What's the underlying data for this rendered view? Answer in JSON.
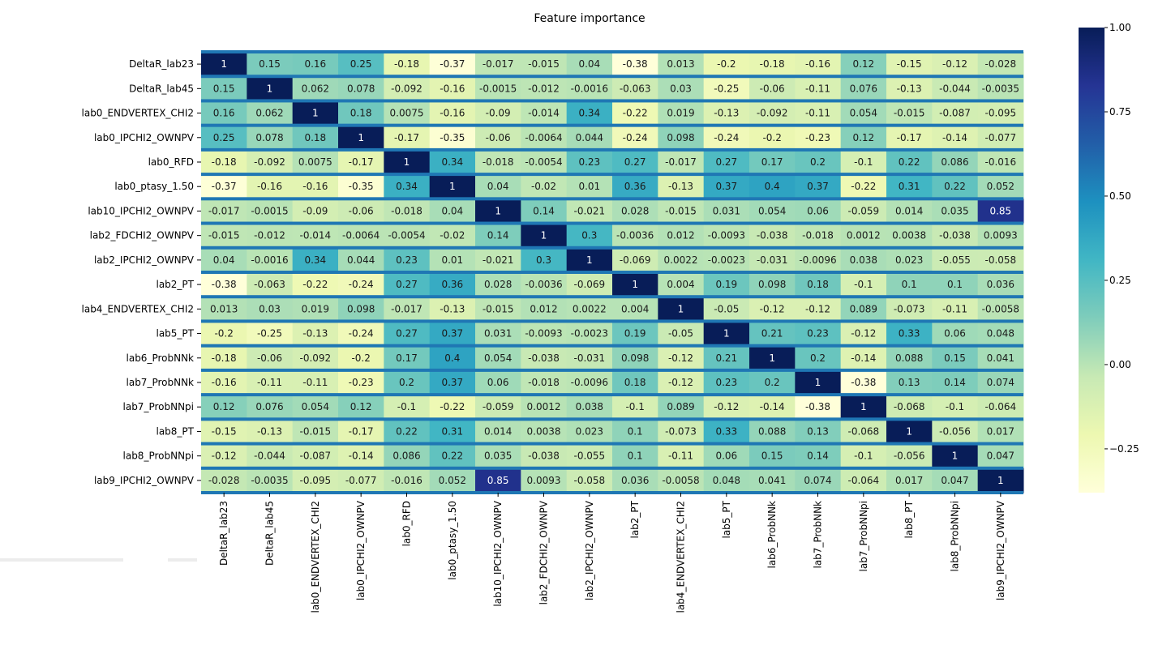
{
  "chart_data": {
    "type": "heatmap",
    "title": "Feature importance",
    "labels": [
      "DeltaR_lab23",
      "DeltaR_lab45",
      "lab0_ENDVERTEX_CHI2",
      "lab0_IPCHI2_OWNPV",
      "lab0_RFD",
      "lab0_ptasy_1.50",
      "lab10_IPCHI2_OWNPV",
      "lab2_FDCHI2_OWNPV",
      "lab2_IPCHI2_OWNPV",
      "lab2_PT",
      "lab4_ENDVERTEX_CHI2",
      "lab5_PT",
      "lab6_ProbNNk",
      "lab7_ProbNNk",
      "lab7_ProbNNpi",
      "lab8_PT",
      "lab8_ProbNNpi",
      "lab9_IPCHI2_OWNPV"
    ],
    "matrix": [
      [
        "1",
        "0.15",
        "0.16",
        "0.25",
        "-0.18",
        "-0.37",
        "-0.017",
        "-0.015",
        "0.04",
        "-0.38",
        "0.013",
        "-0.2",
        "-0.18",
        "-0.16",
        "0.12",
        "-0.15",
        "-0.12",
        "-0.028"
      ],
      [
        "0.15",
        "1",
        "0.062",
        "0.078",
        "-0.092",
        "-0.16",
        "-0.0015",
        "-0.012",
        "-0.0016",
        "-0.063",
        "0.03",
        "-0.25",
        "-0.06",
        "-0.11",
        "0.076",
        "-0.13",
        "-0.044",
        "-0.0035"
      ],
      [
        "0.16",
        "0.062",
        "1",
        "0.18",
        "0.0075",
        "-0.16",
        "-0.09",
        "-0.014",
        "0.34",
        "-0.22",
        "0.019",
        "-0.13",
        "-0.092",
        "-0.11",
        "0.054",
        "-0.015",
        "-0.087",
        "-0.095"
      ],
      [
        "0.25",
        "0.078",
        "0.18",
        "1",
        "-0.17",
        "-0.35",
        "-0.06",
        "-0.0064",
        "0.044",
        "-0.24",
        "0.098",
        "-0.24",
        "-0.2",
        "-0.23",
        "0.12",
        "-0.17",
        "-0.14",
        "-0.077"
      ],
      [
        "-0.18",
        "-0.092",
        "0.0075",
        "-0.17",
        "1",
        "0.34",
        "-0.018",
        "-0.0054",
        "0.23",
        "0.27",
        "-0.017",
        "0.27",
        "0.17",
        "0.2",
        "-0.1",
        "0.22",
        "0.086",
        "-0.016"
      ],
      [
        "-0.37",
        "-0.16",
        "-0.16",
        "-0.35",
        "0.34",
        "1",
        "0.04",
        "-0.02",
        "0.01",
        "0.36",
        "-0.13",
        "0.37",
        "0.4",
        "0.37",
        "-0.22",
        "0.31",
        "0.22",
        "0.052"
      ],
      [
        "-0.017",
        "-0.0015",
        "-0.09",
        "-0.06",
        "-0.018",
        "0.04",
        "1",
        "0.14",
        "-0.021",
        "0.028",
        "-0.015",
        "0.031",
        "0.054",
        "0.06",
        "-0.059",
        "0.014",
        "0.035",
        "0.85"
      ],
      [
        "-0.015",
        "-0.012",
        "-0.014",
        "-0.0064",
        "-0.0054",
        "-0.02",
        "0.14",
        "1",
        "0.3",
        "-0.0036",
        "0.012",
        "-0.0093",
        "-0.038",
        "-0.018",
        "0.0012",
        "0.0038",
        "-0.038",
        "0.0093"
      ],
      [
        "0.04",
        "-0.0016",
        "0.34",
        "0.044",
        "0.23",
        "0.01",
        "-0.021",
        "0.3",
        "1",
        "-0.069",
        "0.0022",
        "-0.0023",
        "-0.031",
        "-0.0096",
        "0.038",
        "0.023",
        "-0.055",
        "-0.058"
      ],
      [
        "-0.38",
        "-0.063",
        "-0.22",
        "-0.24",
        "0.27",
        "0.36",
        "0.028",
        "-0.0036",
        "-0.069",
        "1",
        "0.004",
        "0.19",
        "0.098",
        "0.18",
        "-0.1",
        "0.1",
        "0.1",
        "0.036"
      ],
      [
        "0.013",
        "0.03",
        "0.019",
        "0.098",
        "-0.017",
        "-0.13",
        "-0.015",
        "0.012",
        "0.0022",
        "0.004",
        "1",
        "-0.05",
        "-0.12",
        "-0.12",
        "0.089",
        "-0.073",
        "-0.11",
        "-0.0058"
      ],
      [
        "-0.2",
        "-0.25",
        "-0.13",
        "-0.24",
        "0.27",
        "0.37",
        "0.031",
        "-0.0093",
        "-0.0023",
        "0.19",
        "-0.05",
        "1",
        "0.21",
        "0.23",
        "-0.12",
        "0.33",
        "0.06",
        "0.048"
      ],
      [
        "-0.18",
        "-0.06",
        "-0.092",
        "-0.2",
        "0.17",
        "0.4",
        "0.054",
        "-0.038",
        "-0.031",
        "0.098",
        "-0.12",
        "0.21",
        "1",
        "0.2",
        "-0.14",
        "0.088",
        "0.15",
        "0.041"
      ],
      [
        "-0.16",
        "-0.11",
        "-0.11",
        "-0.23",
        "0.2",
        "0.37",
        "0.06",
        "-0.018",
        "-0.0096",
        "0.18",
        "-0.12",
        "0.23",
        "0.2",
        "1",
        "-0.38",
        "0.13",
        "0.14",
        "0.074"
      ],
      [
        "0.12",
        "0.076",
        "0.054",
        "0.12",
        "-0.1",
        "-0.22",
        "-0.059",
        "0.0012",
        "0.038",
        "-0.1",
        "0.089",
        "-0.12",
        "-0.14",
        "-0.38",
        "1",
        "-0.068",
        "-0.1",
        "-0.064"
      ],
      [
        "-0.15",
        "-0.13",
        "-0.015",
        "-0.17",
        "0.22",
        "0.31",
        "0.014",
        "0.0038",
        "0.023",
        "0.1",
        "-0.073",
        "0.33",
        "0.088",
        "0.13",
        "-0.068",
        "1",
        "-0.056",
        "0.017"
      ],
      [
        "-0.12",
        "-0.044",
        "-0.087",
        "-0.14",
        "0.086",
        "0.22",
        "0.035",
        "-0.038",
        "-0.055",
        "0.1",
        "-0.11",
        "0.06",
        "0.15",
        "0.14",
        "-0.1",
        "-0.056",
        "1",
        "0.047"
      ],
      [
        "-0.028",
        "-0.0035",
        "-0.095",
        "-0.077",
        "-0.016",
        "0.052",
        "0.85",
        "0.0093",
        "-0.058",
        "0.036",
        "-0.0058",
        "0.048",
        "0.041",
        "0.074",
        "-0.064",
        "0.017",
        "0.047",
        "1"
      ]
    ],
    "colormap": "YlGnBu",
    "colormap_stops": [
      "#ffffd9",
      "#edf8b1",
      "#c7e9b4",
      "#7fcdbb",
      "#41b6c4",
      "#1d91c0",
      "#225ea8",
      "#253494",
      "#081d58"
    ],
    "vmin": -0.38,
    "vmax": 1.0,
    "colorbar_ticks": [
      "1.00",
      "0.75",
      "0.50",
      "0.25",
      "0.00",
      "−0.25"
    ],
    "colorbar_tick_values": [
      1.0,
      0.75,
      0.5,
      0.25,
      0.0,
      -0.25
    ],
    "row_separator_color": "#1f77b4"
  }
}
